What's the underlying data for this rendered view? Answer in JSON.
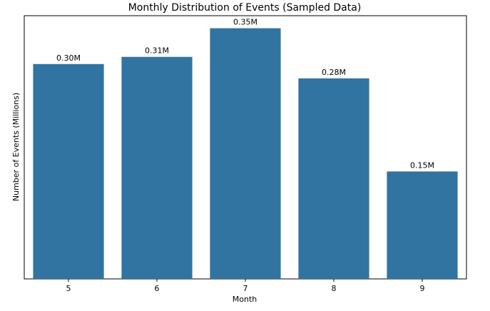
{
  "chart_data": {
    "type": "bar",
    "title": "Monthly Distribution of Events (Sampled Data)",
    "xlabel": "Month",
    "ylabel": "Number of Events (Millions)",
    "categories": [
      "5",
      "6",
      "7",
      "8",
      "9"
    ],
    "values": [
      0.3,
      0.31,
      0.35,
      0.28,
      0.15
    ],
    "data_labels": [
      "0.30M",
      "0.31M",
      "0.35M",
      "0.28M",
      "0.15M"
    ],
    "ylim": [
      0,
      0.3675
    ],
    "y_ticks_visible": false,
    "grid": false,
    "bar_color": "#3274a1"
  }
}
